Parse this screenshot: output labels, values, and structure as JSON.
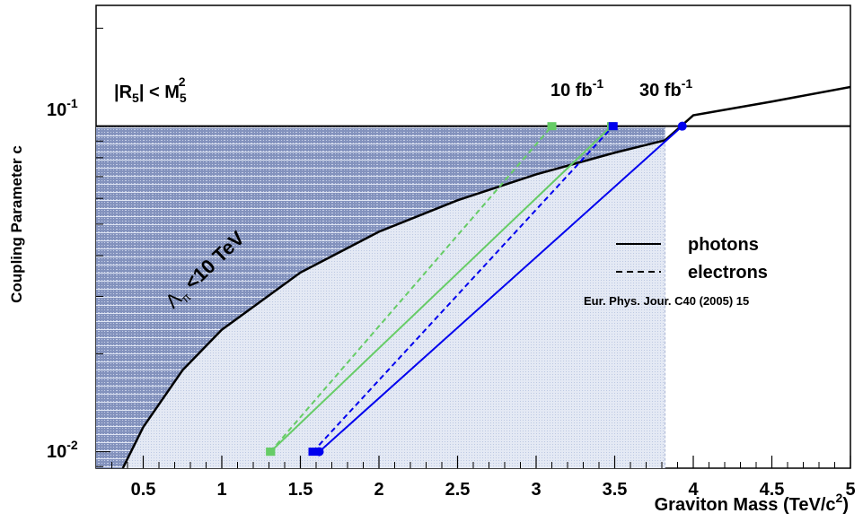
{
  "chart_data": {
    "type": "line",
    "title": "",
    "xlabel": "Graviton Mass (TeV/c",
    "xlabel_sup": "2",
    "xlabel_end": ")",
    "ylabel": "Coupling Parameter c",
    "xlim": [
      0.2,
      5.0
    ],
    "ylim": [
      0.0089,
      0.235
    ],
    "yscale": "log",
    "grid": false,
    "x_ticks": [
      0.5,
      1,
      1.5,
      2,
      2.5,
      3,
      3.5,
      4,
      4.5,
      5
    ],
    "x_tick_labels": [
      "0.5",
      "1",
      "1.5",
      "2",
      "2.5",
      "3",
      "3.5",
      "4",
      "4.5",
      "5"
    ],
    "y_ticks": [
      0.01,
      0.1
    ],
    "y_tick_labels": [
      {
        "base": "10",
        "exp": "-2"
      },
      {
        "base": "10",
        "exp": "-1"
      }
    ],
    "series": [
      {
        "name": "photons",
        "luminosity": "10 fb",
        "luminosity_exp": "-1",
        "color": "#66cc66",
        "dash": false,
        "x": [
          1.31,
          3.48
        ],
        "y": [
          0.01,
          0.1
        ]
      },
      {
        "name": "electrons",
        "luminosity": "10 fb",
        "luminosity_exp": "-1",
        "color": "#66cc66",
        "dash": true,
        "x": [
          1.31,
          3.1
        ],
        "y": [
          0.01,
          0.1
        ]
      },
      {
        "name": "photons",
        "luminosity": "30 fb",
        "luminosity_exp": "-1",
        "color": "#0000ee",
        "dash": false,
        "x": [
          1.62,
          3.93
        ],
        "y": [
          0.01,
          0.1
        ]
      },
      {
        "name": "electrons",
        "luminosity": "30 fb",
        "luminosity_exp": "-1",
        "color": "#0000ee",
        "dash": true,
        "x": [
          1.58,
          3.49
        ],
        "y": [
          0.01,
          0.1
        ]
      }
    ],
    "theory_curve": {
      "x": [
        0.37,
        0.5,
        0.75,
        1.0,
        1.5,
        2.0,
        2.5,
        3.0,
        3.5,
        3.82,
        4.0,
        4.5,
        5.0
      ],
      "y": [
        0.0089,
        0.0119,
        0.0178,
        0.0237,
        0.0355,
        0.0474,
        0.0592,
        0.0711,
        0.0829,
        0.0905,
        0.108,
        0.119,
        0.132
      ]
    },
    "r5_limit": 0.1,
    "lambda_limit_x": 3.82,
    "annotations": {
      "r5": {
        "text": "|R",
        "sub": "5",
        "mid": "| < M",
        "sub2": "5",
        "sup2": "2"
      },
      "lambda": {
        "symbol": "Λ",
        "sub": "π",
        "text": " <10 TeV"
      },
      "label_10fb": {
        "text": "10 fb",
        "sup": "-1",
        "color": "#66cc66"
      },
      "label_30fb": {
        "text": "30 fb",
        "sup": "-1",
        "color": "#0000ee"
      }
    },
    "legend": {
      "position": "right",
      "entries": [
        {
          "label": "photons",
          "style": "solid"
        },
        {
          "label": "electrons",
          "style": "dashed"
        }
      ],
      "reference": "Eur. Phys. Jour. C40 (2005) 15"
    },
    "colors": {
      "excluded_dark": "#7d8cb6",
      "excluded_light": "#e6ebf5",
      "green": "#66cc66",
      "blue": "#0000ee"
    }
  }
}
